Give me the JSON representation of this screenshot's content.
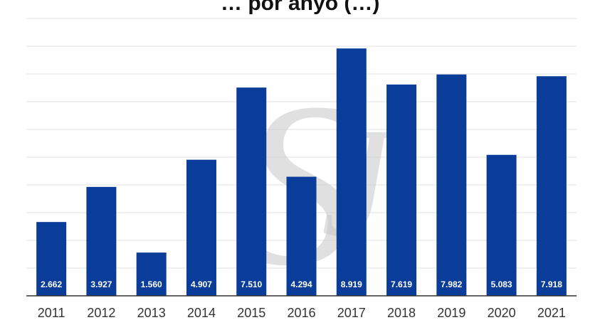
{
  "title": "… por anýo (…)",
  "chart_data": {
    "type": "bar",
    "title": "… por anýo (…)",
    "categories": [
      "2011",
      "2012",
      "2013",
      "2014",
      "2015",
      "2016",
      "2017",
      "2018",
      "2019",
      "2020",
      "2021"
    ],
    "values": [
      2662,
      3927,
      1560,
      4907,
      7510,
      4294,
      8919,
      7619,
      7982,
      5083,
      7918
    ],
    "value_labels": [
      "2.662",
      "3.927",
      "1.560",
      "4.907",
      "7.510",
      "4.294",
      "8.919",
      "7.619",
      "7.982",
      "5.083",
      "7.918"
    ],
    "xlabel": "",
    "ylabel": "",
    "ylim": [
      0,
      10000
    ],
    "grid": true,
    "bar_color": "#0a3d99",
    "grid_color": "#e2e2e2",
    "legend": "none",
    "watermark": "SJ"
  }
}
